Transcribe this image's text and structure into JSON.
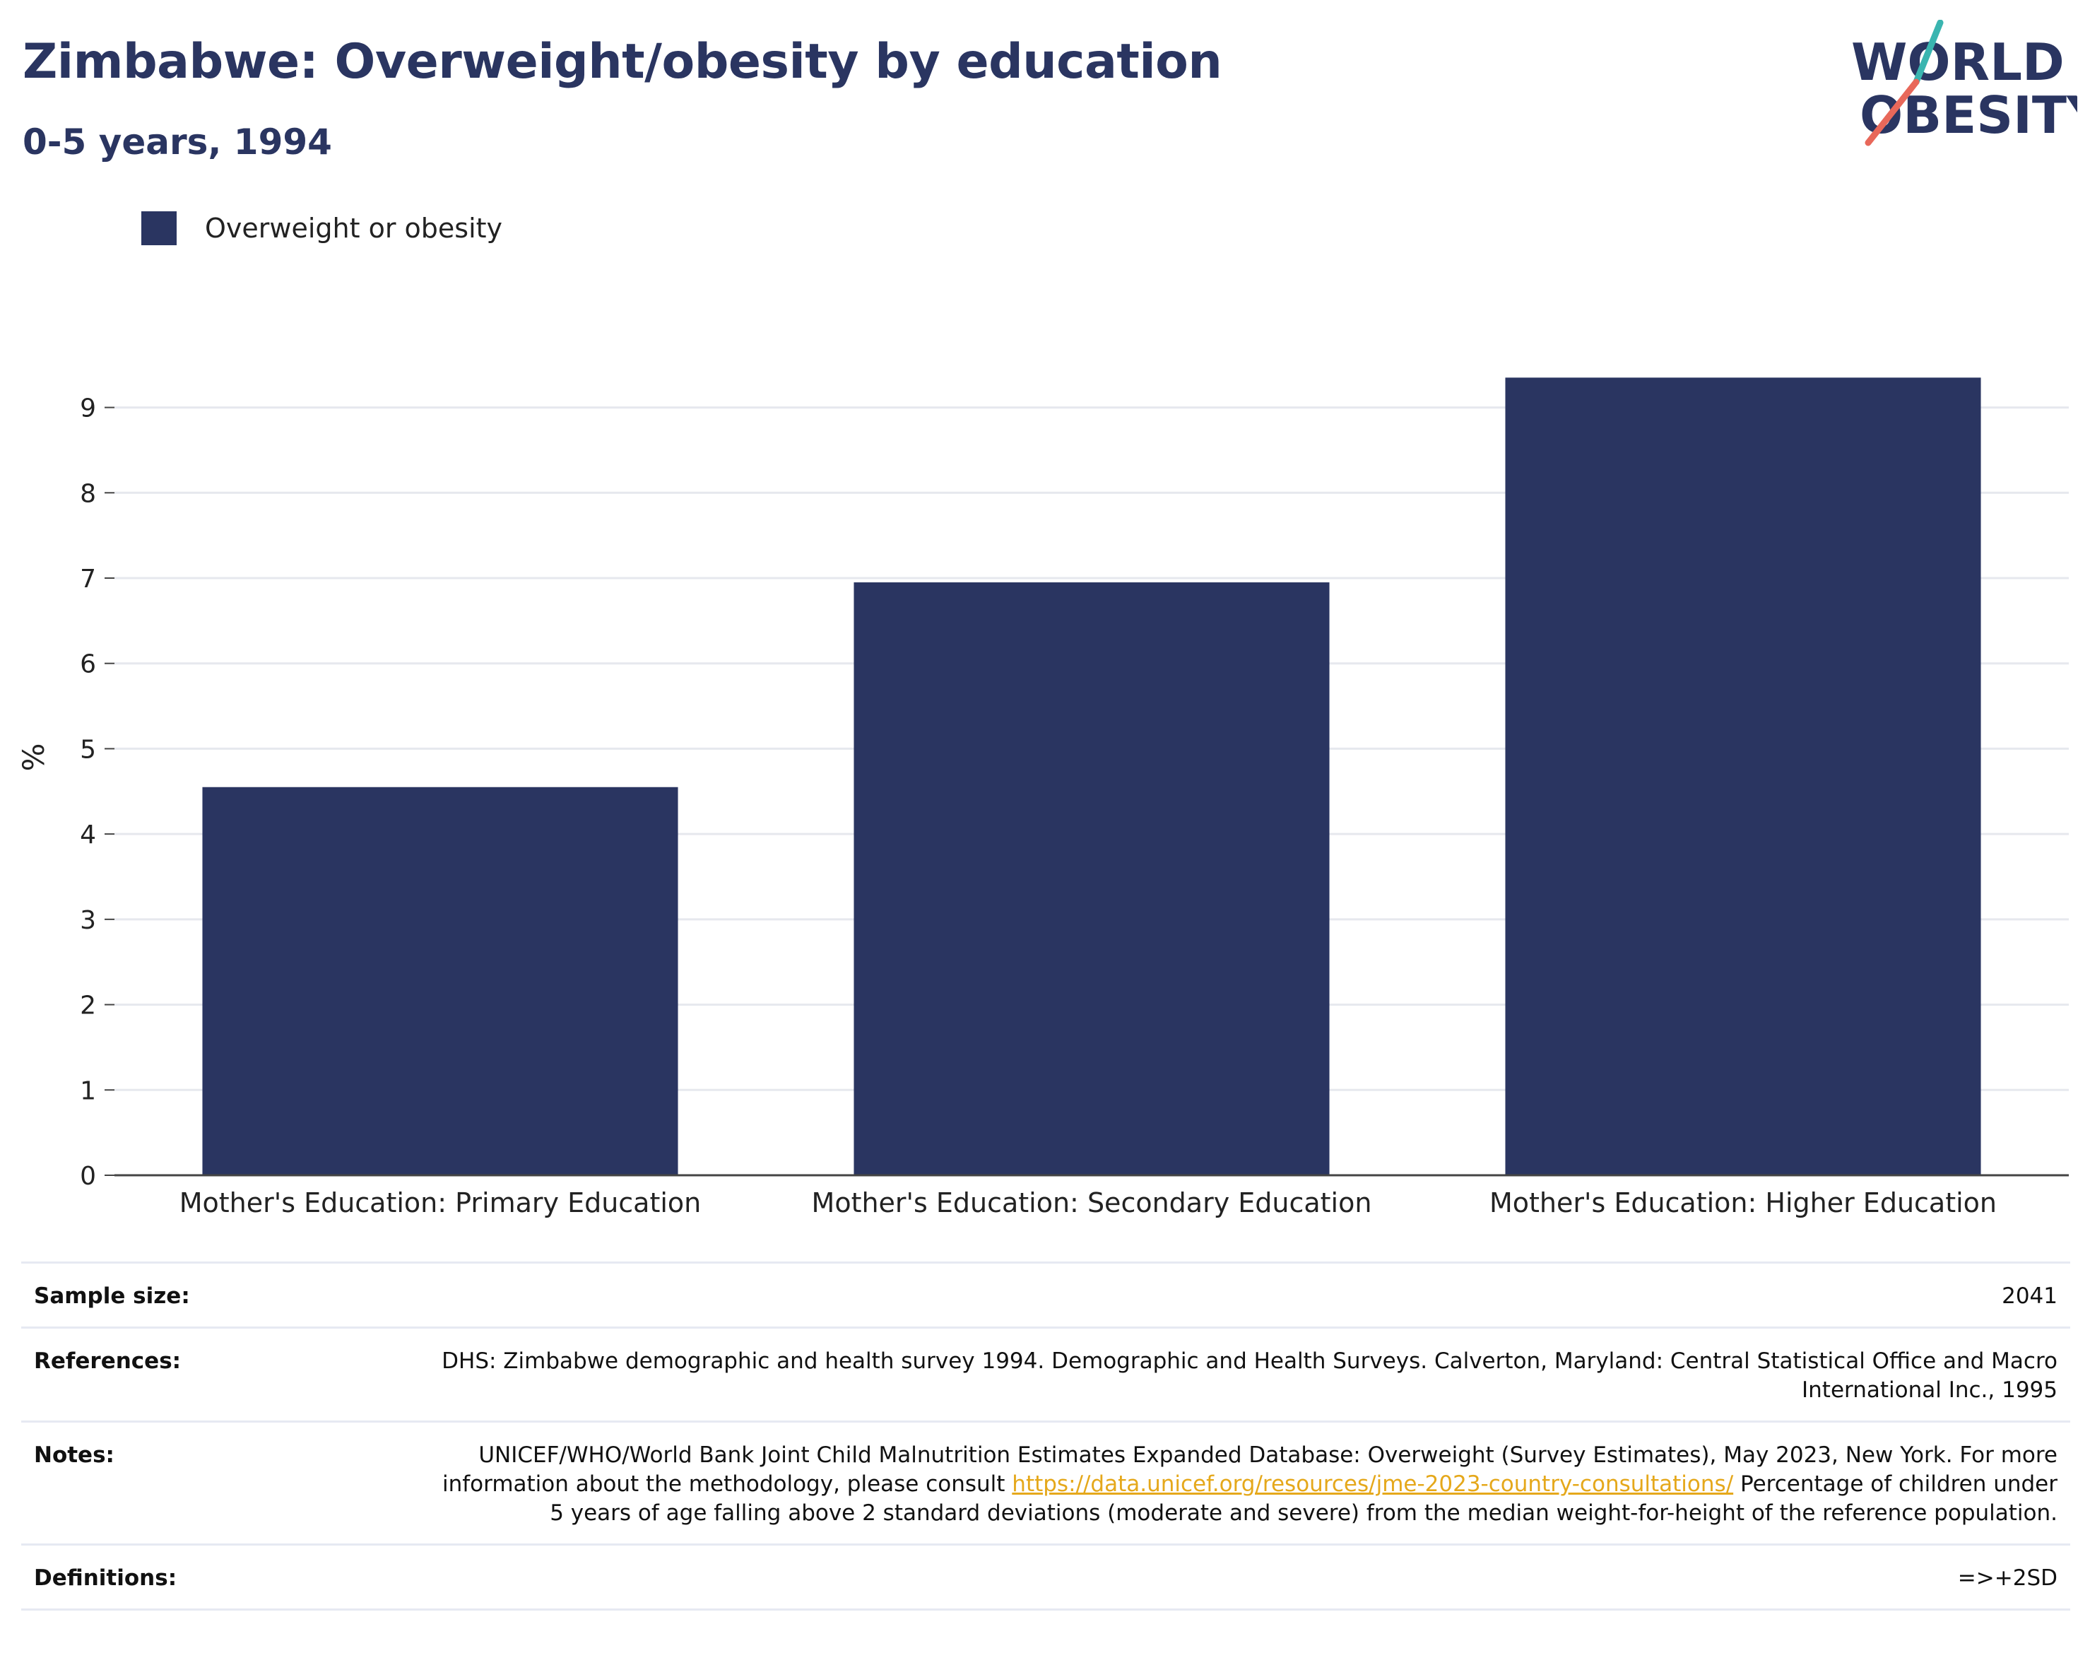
{
  "header": {
    "title": "Zimbabwe: Overweight/obesity by education",
    "subtitle": "0-5 years, 1994"
  },
  "logo": {
    "line1": "WORLD",
    "line2": "OBESITY",
    "colors": {
      "text": "#2a3561",
      "slash_top": "#3ab5b0",
      "slash_bottom": "#e8685a"
    }
  },
  "legend": {
    "label": "Overweight or obesity",
    "color": "#2a3561"
  },
  "chart_data": {
    "type": "bar",
    "categories": [
      "Mother's Education: Primary Education",
      "Mother's Education: Secondary Education",
      "Mother's Education: Higher Education"
    ],
    "series": [
      {
        "name": "Overweight or obesity",
        "values": [
          4.55,
          6.95,
          9.35
        ],
        "color": "#2a3561"
      }
    ],
    "ylabel": "%",
    "ylim": [
      0,
      9.8
    ],
    "yticks": [
      0,
      1,
      2,
      3,
      4,
      5,
      6,
      7,
      8,
      9
    ],
    "grid": true,
    "legend_position": "top-left"
  },
  "info": {
    "sample_size": {
      "label": "Sample size:",
      "value": "2041"
    },
    "references": {
      "label": "References:",
      "value": "DHS: Zimbabwe demographic and health survey 1994. Demographic and Health Surveys. Calverton, Maryland: Central Statistical Office and Macro International Inc., 1995"
    },
    "notes": {
      "label": "Notes:",
      "text_before": "UNICEF/WHO/World Bank Joint Child Malnutrition Estimates Expanded Database: Overweight (Survey Estimates), May 2023, New York. For more information about the methodology, please consult ",
      "link": "https://data.unicef.org/resources/jme-2023-country-consultations/",
      "text_after": " Percentage of children under 5 years of age falling above 2 standard deviations (moderate and severe) from the median weight-for-height of the reference population."
    },
    "definitions": {
      "label": "Definitions:",
      "value": "=>+2SD"
    }
  }
}
